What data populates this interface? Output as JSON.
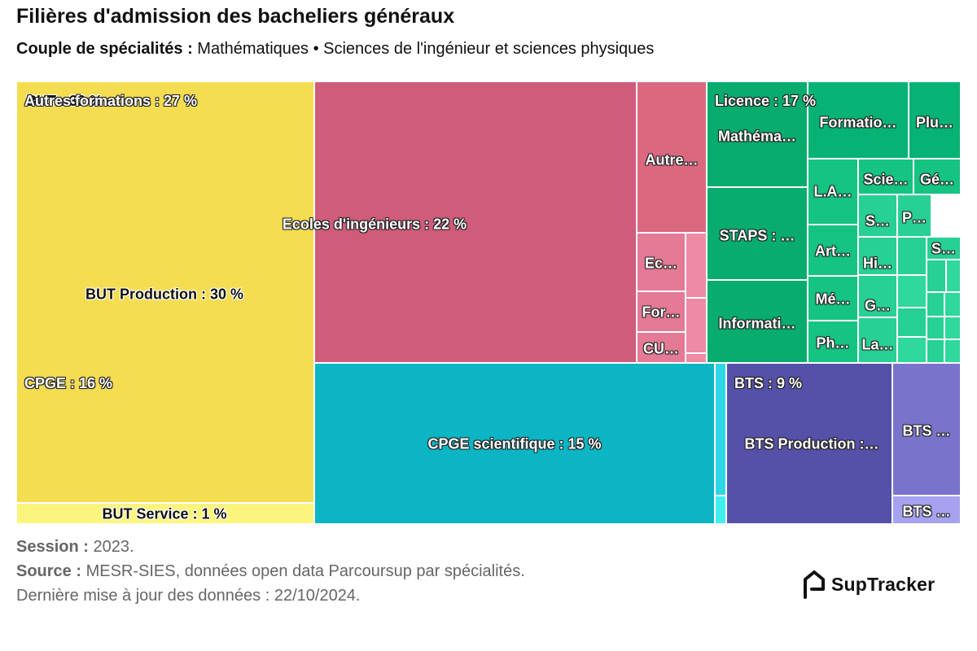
{
  "header": {
    "title": "Filières d'admission des bacheliers généraux",
    "subtitle_label": "Couple de spécialités :",
    "subtitle_value": "Mathématiques • Sciences de l'ingénieur et sciences physiques"
  },
  "chart_data": {
    "type": "treemap",
    "unit": "%",
    "groups": [
      {
        "name": "BUT",
        "label": "BUT : 32 %",
        "value": 32,
        "color": "#f5dd52",
        "children": [
          {
            "name": "BUT Production",
            "label": "BUT Production : 30 %",
            "value": 30,
            "color": "#f5dd52"
          },
          {
            "name": "BUT Service",
            "label": "BUT Service : 1 %",
            "value": 1,
            "color": "#fbf57e"
          }
        ]
      },
      {
        "name": "Autres formations",
        "label": "Autres formations : 27 %",
        "value": 27,
        "color": "#cf5c7a",
        "children": [
          {
            "name": "Ecoles d'ingénieurs",
            "label": "Ecoles d'ingénieurs : 22 %",
            "value": 22,
            "color": "#cf5c7a"
          },
          {
            "name": "Autre...",
            "label": "Autre…",
            "color": "#dc6880"
          },
          {
            "name": "Ec...",
            "label": "Ec…",
            "color": "#e47a95"
          },
          {
            "name": "For...",
            "label": "For…",
            "color": "#e47a95"
          },
          {
            "name": "CU...",
            "label": "CU…",
            "color": "#e47a95"
          },
          {
            "name": "",
            "label": "",
            "color": "#ee8aa5"
          },
          {
            "name": "",
            "label": "",
            "color": "#ee8aa5"
          },
          {
            "name": "",
            "label": "",
            "color": "#ee8aa5"
          }
        ]
      },
      {
        "name": "Licence",
        "label": "Licence : 17 %",
        "value": 17,
        "color": "#07ac6e",
        "children": [
          {
            "name": "Mathéma...",
            "label": "Mathéma…",
            "color": "#07ac6e"
          },
          {
            "name": "STAPS",
            "label": "STAPS : …",
            "color": "#07ac6e"
          },
          {
            "name": "Informati...",
            "label": "Informati…",
            "color": "#07ac6e"
          },
          {
            "name": "Formatio...",
            "label": "Formatio…",
            "color": "#07b374"
          },
          {
            "name": "Plu...",
            "label": "Plu…",
            "color": "#07b374"
          },
          {
            "name": "L.A...",
            "label": "L.A…",
            "color": "#15c383"
          },
          {
            "name": "Scie...",
            "label": "Scie…",
            "color": "#15c383"
          },
          {
            "name": "Gé...",
            "label": "Gé…",
            "color": "#15c383"
          },
          {
            "name": "S...",
            "label": "S…",
            "color": "#27d093"
          },
          {
            "name": "P...",
            "label": "P…",
            "color": "#27d093"
          },
          {
            "name": "Art...",
            "label": "Art…",
            "color": "#15c383"
          },
          {
            "name": "Hi...",
            "label": "Hi…",
            "color": "#27d093"
          },
          {
            "name": "S...",
            "label": "S…",
            "color": "#27d093"
          },
          {
            "name": "Mé...",
            "label": "Mé…",
            "color": "#15c383"
          },
          {
            "name": "G...",
            "label": "G…",
            "color": "#27d093"
          },
          {
            "name": "Ph...",
            "label": "Ph…",
            "color": "#15c383"
          },
          {
            "name": "La...",
            "label": "La…",
            "color": "#27d093"
          }
        ]
      },
      {
        "name": "CPGE",
        "label": "CPGE : 16 %",
        "value": 16,
        "color": "#0bb5c4",
        "children": [
          {
            "name": "CPGE scientifique",
            "label": "CPGE scientifique : 15 %",
            "value": 15,
            "color": "#0bb5c4"
          },
          {
            "name": "",
            "label": "",
            "color": "#2fd6e6"
          },
          {
            "name": "",
            "label": "",
            "color": "#41efef"
          }
        ]
      },
      {
        "name": "BTS",
        "label": "BTS : 9 %",
        "value": 9,
        "color": "#5550a8",
        "children": [
          {
            "name": "BTS Production",
            "label": "BTS Production :…",
            "color": "#5550a8"
          },
          {
            "name": "BTS ...",
            "label": "BTS …",
            "color": "#7a73cc"
          },
          {
            "name": "BTS ...",
            "label": "BTS …",
            "color": "#a7a2f0"
          }
        ]
      }
    ]
  },
  "footer": {
    "session_label": "Session :",
    "session_value": "2023.",
    "source_label": "Source :",
    "source_value": "MESR-SIES, données open data Parcoursup par spécialités.",
    "update_text": "Dernière mise à jour des données : 22/10/2024."
  },
  "brand": {
    "name": "SupTracker",
    "icon": "suptracker-logo-icon"
  }
}
